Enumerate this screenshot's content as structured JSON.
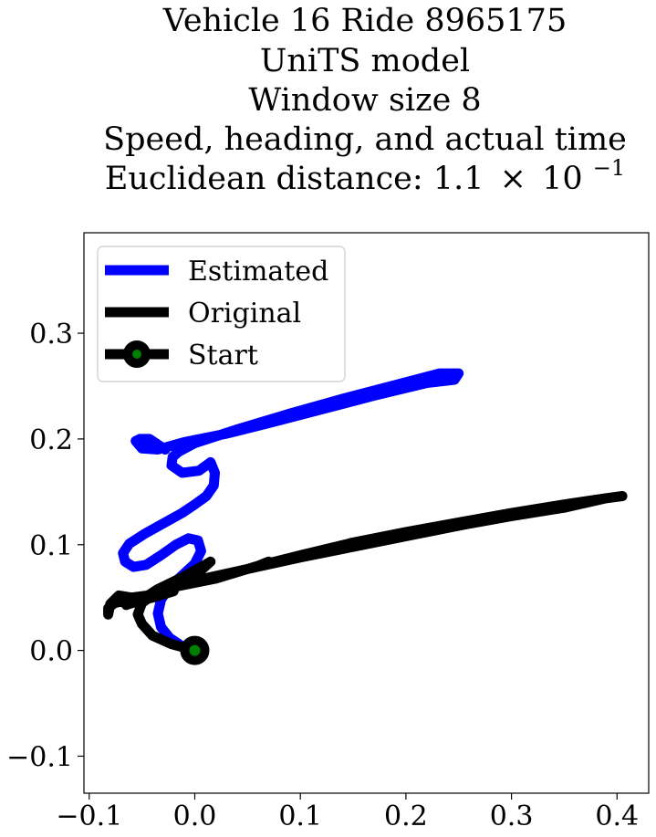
{
  "chart_data": {
    "type": "line",
    "title_lines": [
      "Vehicle 16 Ride 8965175",
      "UniTS model",
      "Window size 8",
      "Speed, heading, and actual time"
    ],
    "title_metric_prefix": "Euclidean distance: 1.1",
    "title_metric_times": "×",
    "title_metric_base": "10",
    "title_metric_exponent": "−1",
    "xlim": [
      -0.105,
      0.43
    ],
    "ylim": [
      -0.135,
      0.395
    ],
    "x_ticks": [
      -0.1,
      0.0,
      0.1,
      0.2,
      0.3,
      0.4
    ],
    "x_tick_labels": [
      "−0.1",
      "0.0",
      "0.1",
      "0.2",
      "0.3",
      "0.4"
    ],
    "y_ticks": [
      -0.1,
      0.0,
      0.1,
      0.2,
      0.3
    ],
    "y_tick_labels": [
      "−0.1",
      "0.0",
      "0.1",
      "0.2",
      "0.3"
    ],
    "grid": false,
    "legend_position": "upper-left",
    "series": [
      {
        "name": "Estimated",
        "color": "#0000ff",
        "points": [
          [
            0.0,
            0.0
          ],
          [
            -0.012,
            0.004
          ],
          [
            -0.024,
            0.012
          ],
          [
            -0.032,
            0.022
          ],
          [
            -0.035,
            0.035
          ],
          [
            -0.032,
            0.048
          ],
          [
            -0.024,
            0.06
          ],
          [
            -0.012,
            0.071
          ],
          [
            0.0,
            0.082
          ],
          [
            0.006,
            0.094
          ],
          [
            0.003,
            0.104
          ],
          [
            -0.006,
            0.106
          ],
          [
            -0.018,
            0.1
          ],
          [
            -0.032,
            0.09
          ],
          [
            -0.046,
            0.081
          ],
          [
            -0.058,
            0.079
          ],
          [
            -0.066,
            0.084
          ],
          [
            -0.068,
            0.092
          ],
          [
            -0.062,
            0.101
          ],
          [
            -0.048,
            0.11
          ],
          [
            -0.03,
            0.12
          ],
          [
            -0.012,
            0.13
          ],
          [
            0.0,
            0.138
          ],
          [
            0.011,
            0.146
          ],
          [
            0.018,
            0.156
          ],
          [
            0.019,
            0.168
          ],
          [
            0.015,
            0.178
          ],
          [
            0.004,
            0.17
          ],
          [
            -0.012,
            0.168
          ],
          [
            -0.022,
            0.175
          ],
          [
            -0.021,
            0.183
          ],
          [
            -0.015,
            0.188
          ],
          [
            0.0,
            0.196
          ],
          [
            0.04,
            0.209
          ],
          [
            0.09,
            0.224
          ],
          [
            0.14,
            0.238
          ],
          [
            0.19,
            0.251
          ],
          [
            0.232,
            0.262
          ],
          [
            0.25,
            0.262
          ],
          [
            0.246,
            0.256
          ],
          [
            0.22,
            0.253
          ],
          [
            0.17,
            0.241
          ],
          [
            0.12,
            0.228
          ],
          [
            0.07,
            0.215
          ],
          [
            0.03,
            0.205
          ],
          [
            -0.01,
            0.197
          ],
          [
            -0.035,
            0.19
          ],
          [
            -0.05,
            0.191
          ],
          [
            -0.056,
            0.198
          ],
          [
            -0.052,
            0.2
          ],
          [
            -0.043,
            0.2
          ],
          [
            -0.037,
            0.196
          ],
          [
            -0.028,
            0.19
          ]
        ]
      },
      {
        "name": "Original",
        "color": "#000000",
        "points": [
          [
            0.0,
            0.0
          ],
          [
            -0.022,
            0.006
          ],
          [
            -0.04,
            0.014
          ],
          [
            -0.05,
            0.025
          ],
          [
            -0.054,
            0.034
          ],
          [
            -0.05,
            0.045
          ],
          [
            -0.04,
            0.052
          ],
          [
            -0.025,
            0.058
          ],
          [
            -0.01,
            0.066
          ],
          [
            0.005,
            0.075
          ],
          [
            0.015,
            0.084
          ],
          [
            -0.01,
            0.07
          ],
          [
            -0.035,
            0.058
          ],
          [
            -0.052,
            0.047
          ],
          [
            -0.062,
            0.044
          ],
          [
            -0.07,
            0.046
          ],
          [
            -0.076,
            0.045
          ],
          [
            -0.082,
            0.04
          ],
          [
            -0.082,
            0.034
          ],
          [
            -0.08,
            0.044
          ],
          [
            -0.072,
            0.052
          ],
          [
            -0.06,
            0.05
          ],
          [
            -0.045,
            0.052
          ],
          [
            -0.02,
            0.06
          ],
          [
            0.02,
            0.068
          ],
          [
            0.06,
            0.08
          ],
          [
            0.07,
            0.084
          ],
          [
            0.06,
            0.08
          ],
          [
            0.1,
            0.09
          ],
          [
            0.15,
            0.102
          ],
          [
            0.2,
            0.112
          ],
          [
            0.25,
            0.121
          ],
          [
            0.3,
            0.13
          ],
          [
            0.35,
            0.138
          ],
          [
            0.39,
            0.144
          ],
          [
            0.405,
            0.146
          ],
          [
            0.39,
            0.144
          ],
          [
            0.35,
            0.135
          ],
          [
            0.3,
            0.127
          ],
          [
            0.25,
            0.118
          ],
          [
            0.2,
            0.108
          ],
          [
            0.15,
            0.098
          ],
          [
            0.1,
            0.088
          ],
          [
            0.05,
            0.077
          ],
          [
            0.0,
            0.066
          ],
          [
            -0.03,
            0.058
          ],
          [
            -0.05,
            0.05
          ],
          [
            -0.065,
            0.043
          ],
          [
            -0.058,
            0.046
          ],
          [
            -0.04,
            0.05
          ],
          [
            -0.02,
            0.056
          ]
        ]
      }
    ],
    "start": {
      "name": "Start",
      "x": 0.0,
      "y": 0.0,
      "marker_fill": "#008000",
      "marker_edge": "#000000"
    }
  }
}
